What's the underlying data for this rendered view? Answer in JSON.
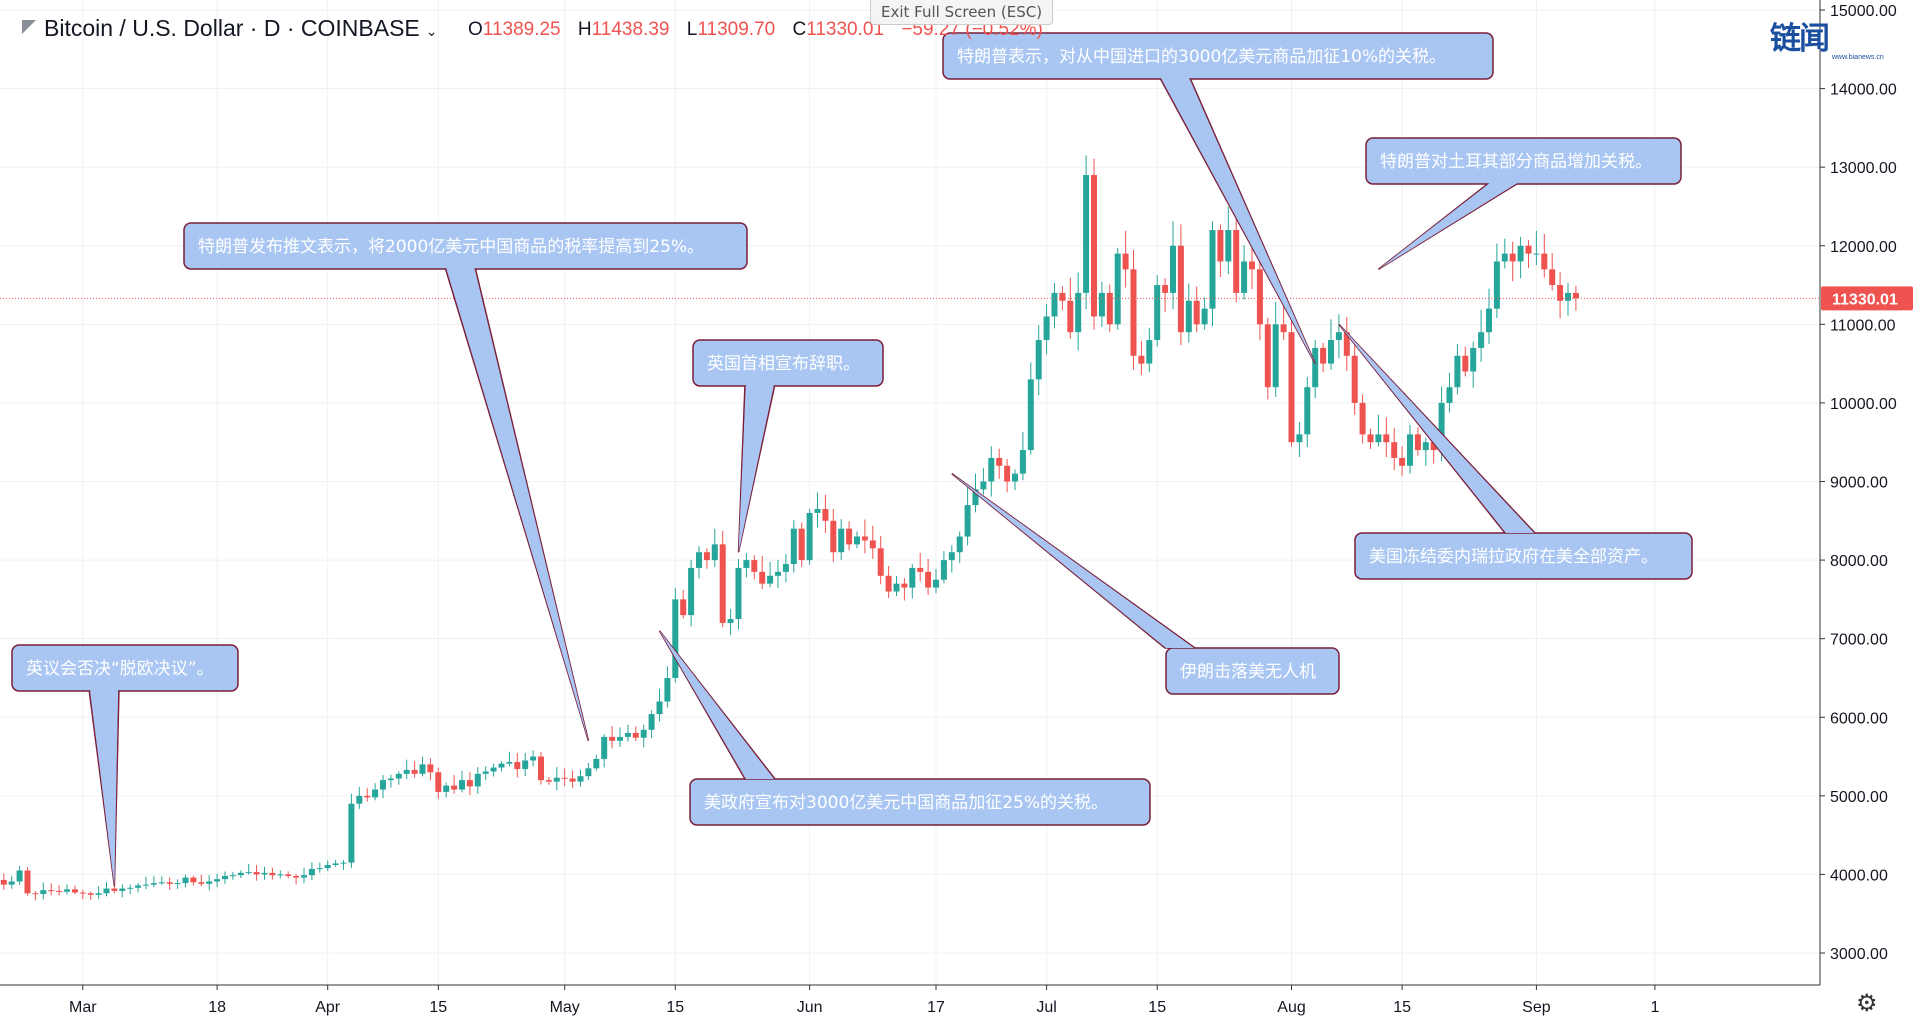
{
  "header": {
    "symbol": "Bitcoin / U.S. Dollar · D · COINBASE",
    "open_label": "O",
    "open": "11389.25",
    "high_label": "H",
    "high": "11438.39",
    "low_label": "L",
    "low": "11309.70",
    "close_label": "C",
    "close": "11330.01",
    "change": "−59.27 (−0.52%)",
    "exit_fullscreen": "Exit Full Screen (ESC)"
  },
  "watermark": {
    "text": "链闻",
    "sub": "www.bianews.cn"
  },
  "colors": {
    "up": "#26a69a",
    "down": "#ef5350",
    "callout_fill": "#a9c6f3",
    "callout_border": "#7b1f3a",
    "last_price_bg": "#ef5350"
  },
  "chart_data": {
    "type": "candlestick",
    "title": "",
    "ylim": [
      2700,
      15100
    ],
    "y_ticks": [
      "3000.00",
      "4000.00",
      "5000.00",
      "6000.00",
      "7000.00",
      "8000.00",
      "9000.00",
      "10000.00",
      "11000.00",
      "12000.00",
      "13000.00",
      "14000.00",
      "15000.00"
    ],
    "x_ticks": [
      {
        "label": "Mar",
        "day": 12
      },
      {
        "label": "18",
        "day": 29
      },
      {
        "label": "Apr",
        "day": 43
      },
      {
        "label": "15",
        "day": 57
      },
      {
        "label": "May",
        "day": 73
      },
      {
        "label": "15",
        "day": 87
      },
      {
        "label": "Jun",
        "day": 104
      },
      {
        "label": "17",
        "day": 120
      },
      {
        "label": "Jul",
        "day": 134
      },
      {
        "label": "15",
        "day": 148
      },
      {
        "label": "Aug",
        "day": 165
      },
      {
        "label": "15",
        "day": 179
      },
      {
        "label": "Sep",
        "day": 196
      },
      {
        "label": "1",
        "day": 211
      }
    ],
    "last_price": "11330.01",
    "closes": [
      3900,
      3930,
      3870,
      3910,
      4050,
      3760,
      3750,
      3800,
      3790,
      3780,
      3810,
      3770,
      3760,
      3740,
      3760,
      3820,
      3790,
      3820,
      3830,
      3860,
      3870,
      3890,
      3900,
      3880,
      3890,
      3960,
      3900,
      3880,
      3910,
      3940,
      3980,
      3990,
      4020,
      4030,
      4000,
      4020,
      3990,
      4000,
      3980,
      3960,
      3990,
      4070,
      4080,
      4120,
      4140,
      4150,
      4900,
      5000,
      4980,
      5080,
      5200,
      5220,
      5280,
      5330,
      5280,
      5400,
      5300,
      5050,
      5130,
      5080,
      5200,
      5120,
      5280,
      5310,
      5360,
      5410,
      5430,
      5340,
      5450,
      5500,
      5200,
      5180,
      5230,
      5220,
      5180,
      5250,
      5350,
      5470,
      5750,
      5700,
      5750,
      5800,
      5740,
      5840,
      6040,
      6200,
      6500,
      7500,
      7300,
      7900,
      8100,
      8000,
      8200,
      7200,
      7250,
      7900,
      8000,
      7850,
      7700,
      7800,
      7850,
      7950,
      8400,
      8000,
      8600,
      8650,
      8500,
      8100,
      8400,
      8200,
      8300,
      8250,
      8150,
      7800,
      7600,
      7700,
      7650,
      7900,
      7850,
      7650,
      7750,
      8000,
      8100,
      8300,
      8700,
      8900,
      9000,
      9300,
      9200,
      9000,
      9100,
      9400,
      10300,
      10800,
      11100,
      11400,
      11300,
      10900,
      11400,
      12900,
      11100,
      11400,
      11000,
      11900,
      11700,
      10600,
      10500,
      10800,
      11500,
      11400,
      12000,
      10900,
      11300,
      11000,
      11200,
      12200,
      11800,
      12200,
      11400,
      11800,
      11700,
      11000,
      10200,
      11000,
      10900,
      9500,
      9600,
      10200,
      10700,
      10500,
      10800,
      10900,
      10600,
      10000,
      9600,
      9500,
      9600,
      9500,
      9300,
      9200,
      9600,
      9400,
      9500,
      9400,
      10000,
      10200,
      10600,
      10400,
      10700,
      10900,
      11200,
      11800,
      11900,
      11800,
      12000,
      11900,
      11900,
      11700,
      11500,
      11300,
      11400,
      11330
    ],
    "annotations": [
      {
        "text": "英议会否决“脱欧决议”。",
        "target_day": 16,
        "target_price": 3850
      },
      {
        "text": "特朗普发布推文表示，将2000亿美元中国商品的税率提高到25%。",
        "target_day": 76,
        "target_price": 5700
      },
      {
        "text": "美政府宣布对3000亿美元中国商品加征25%的关税。",
        "target_day": 85,
        "target_price": 7100
      },
      {
        "text": "英国首相宣布辞职。",
        "target_day": 95,
        "target_price": 8100
      },
      {
        "text": "伊朗击落美无人机",
        "target_day": 122,
        "target_price": 9100
      },
      {
        "text": "特朗普表示，对从中国进口的3000亿美元商品加征10%的关税。",
        "target_day": 168,
        "target_price": 10500
      },
      {
        "text": "特朗普对土耳其部分商品增加关税。",
        "target_day": 176,
        "target_price": 11700
      },
      {
        "text": "美国冻结委内瑞拉政府在美全部资产。",
        "target_day": 171,
        "target_price": 11000
      }
    ]
  }
}
